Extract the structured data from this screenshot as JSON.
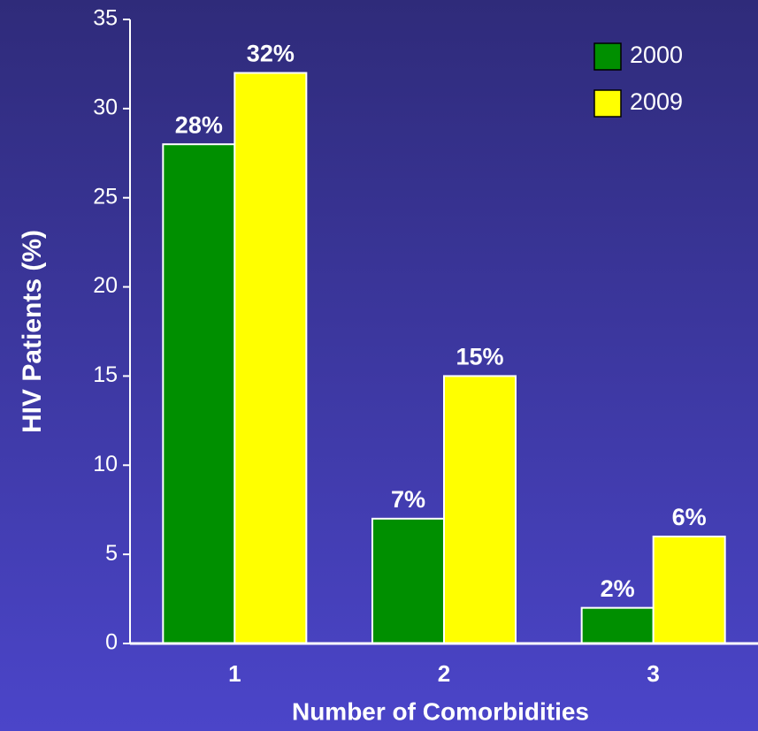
{
  "chart_data": {
    "type": "bar",
    "x_label": "Number of Comorbidities",
    "y_label": "HIV Patients (%)",
    "categories": [
      "1",
      "2",
      "3"
    ],
    "series": [
      {
        "name": "2000",
        "color": "#008f00",
        "values": [
          28,
          7,
          2
        ],
        "value_labels": [
          "28%",
          "7%",
          "2%"
        ]
      },
      {
        "name": "2009",
        "color": "#ffff00",
        "values": [
          32,
          15,
          6
        ],
        "value_labels": [
          "32%",
          "15%",
          "6%"
        ]
      }
    ],
    "ylim": [
      0,
      35
    ],
    "yticks": [
      0,
      5,
      10,
      15,
      20,
      25,
      30,
      35
    ],
    "grid": false,
    "legend": "top-right"
  }
}
